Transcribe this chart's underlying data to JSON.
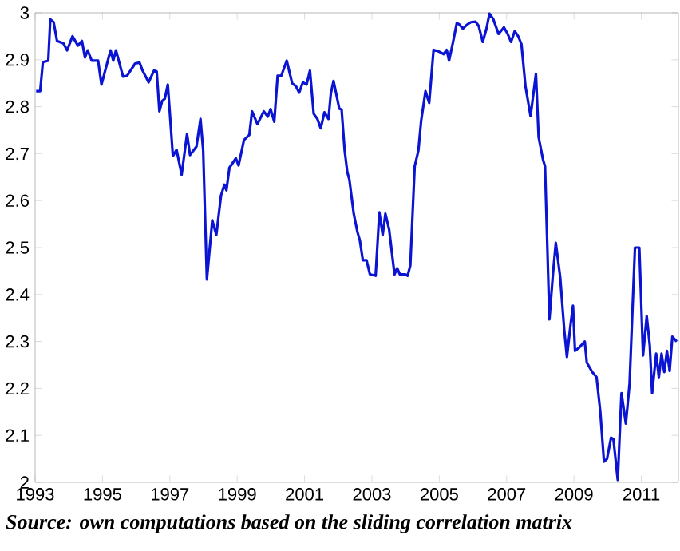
{
  "chart_data": {
    "type": "line",
    "annotations": [
      "Source: own computations based on the sliding correlation matrix"
    ],
    "xlim": [
      1993,
      2012.1
    ],
    "xticks": [
      1993,
      1995,
      1997,
      1999,
      2001,
      2003,
      2005,
      2007,
      2009,
      2011
    ],
    "ylim": [
      2,
      3
    ],
    "yticks": [
      2,
      2.1,
      2.2,
      2.3,
      2.4,
      2.5,
      2.6,
      2.7,
      2.8,
      2.9,
      3
    ],
    "grid": false,
    "legend": false,
    "marker": "none",
    "line_style": "solid",
    "series": [
      {
        "color": "#0a14d2",
        "x": [
          1993.03,
          1993.15,
          1993.23,
          1993.39,
          1993.45,
          1993.55,
          1993.65,
          1993.84,
          1993.95,
          1994.11,
          1994.27,
          1994.39,
          1994.48,
          1994.56,
          1994.68,
          1994.87,
          1994.97,
          1995.24,
          1995.32,
          1995.4,
          1995.61,
          1995.73,
          1995.97,
          1996.1,
          1996.19,
          1996.37,
          1996.53,
          1996.61,
          1996.69,
          1996.77,
          1996.85,
          1996.94,
          1997.09,
          1997.2,
          1997.35,
          1997.51,
          1997.6,
          1997.79,
          1997.91,
          1997.99,
          1998.1,
          1998.26,
          1998.38,
          1998.52,
          1998.62,
          1998.68,
          1998.77,
          1998.96,
          1999.04,
          1999.2,
          1999.36,
          1999.44,
          1999.6,
          1999.79,
          1999.91,
          1999.99,
          2000.1,
          2000.2,
          2000.31,
          2000.47,
          2000.63,
          2000.74,
          2000.84,
          2000.95,
          2001.06,
          2001.16,
          2001.27,
          2001.38,
          2001.48,
          2001.59,
          2001.71,
          2001.78,
          2001.86,
          2002.03,
          2002.1,
          2002.19,
          2002.27,
          2002.33,
          2002.46,
          2002.57,
          2002.64,
          2002.73,
          2002.84,
          2002.94,
          2003.11,
          2003.22,
          2003.32,
          2003.4,
          2003.51,
          2003.67,
          2003.75,
          2003.83,
          2003.98,
          2004.06,
          2004.14,
          2004.27,
          2004.38,
          2004.46,
          2004.59,
          2004.7,
          2004.83,
          2004.97,
          2005.13,
          2005.22,
          2005.29,
          2005.41,
          2005.52,
          2005.6,
          2005.7,
          2005.81,
          2005.94,
          2006.08,
          2006.17,
          2006.29,
          2006.4,
          2006.49,
          2006.6,
          2006.76,
          2006.92,
          2007.03,
          2007.13,
          2007.24,
          2007.35,
          2007.44,
          2007.56,
          2007.71,
          2007.87,
          2007.95,
          2008.08,
          2008.14,
          2008.27,
          2008.38,
          2008.46,
          2008.59,
          2008.71,
          2008.79,
          2008.9,
          2008.97,
          2009.03,
          2009.14,
          2009.32,
          2009.38,
          2009.54,
          2009.67,
          2009.78,
          2009.89,
          2009.98,
          2010.1,
          2010.17,
          2010.3,
          2010.41,
          2010.54,
          2010.65,
          2010.81,
          2010.94,
          2011.05,
          2011.16,
          2011.25,
          2011.32,
          2011.44,
          2011.52,
          2011.6,
          2011.68,
          2011.76,
          2011.84,
          2011.92,
          2012.05
        ],
        "values": [
          2.833,
          2.833,
          2.895,
          2.898,
          2.986,
          2.98,
          2.94,
          2.935,
          2.92,
          2.95,
          2.93,
          2.94,
          2.905,
          2.92,
          2.898,
          2.898,
          2.847,
          2.92,
          2.898,
          2.92,
          2.864,
          2.866,
          2.892,
          2.894,
          2.877,
          2.852,
          2.877,
          2.875,
          2.79,
          2.812,
          2.817,
          2.847,
          2.695,
          2.708,
          2.655,
          2.742,
          2.697,
          2.715,
          2.774,
          2.707,
          2.432,
          2.558,
          2.527,
          2.611,
          2.634,
          2.622,
          2.67,
          2.69,
          2.675,
          2.729,
          2.74,
          2.79,
          2.763,
          2.79,
          2.779,
          2.795,
          2.768,
          2.866,
          2.866,
          2.898,
          2.85,
          2.844,
          2.83,
          2.852,
          2.847,
          2.877,
          2.785,
          2.774,
          2.754,
          2.788,
          2.774,
          2.828,
          2.855,
          2.796,
          2.794,
          2.707,
          2.66,
          2.645,
          2.572,
          2.533,
          2.516,
          2.473,
          2.473,
          2.443,
          2.44,
          2.575,
          2.527,
          2.572,
          2.539,
          2.443,
          2.456,
          2.443,
          2.443,
          2.44,
          2.462,
          2.673,
          2.707,
          2.769,
          2.833,
          2.808,
          2.921,
          2.918,
          2.912,
          2.921,
          2.898,
          2.938,
          2.978,
          2.975,
          2.966,
          2.974,
          2.98,
          2.981,
          2.972,
          2.938,
          2.966,
          2.998,
          2.987,
          2.955,
          2.969,
          2.955,
          2.938,
          2.961,
          2.949,
          2.933,
          2.843,
          2.78,
          2.87,
          2.735,
          2.687,
          2.673,
          2.347,
          2.448,
          2.51,
          2.437,
          2.325,
          2.267,
          2.337,
          2.376,
          2.28,
          2.286,
          2.3,
          2.255,
          2.235,
          2.224,
          2.151,
          2.044,
          2.05,
          2.095,
          2.092,
          2.005,
          2.19,
          2.125,
          2.21,
          2.5,
          2.5,
          2.27,
          2.354,
          2.292,
          2.19,
          2.274,
          2.224,
          2.274,
          2.235,
          2.28,
          2.237,
          2.31,
          2.3
        ]
      }
    ]
  }
}
